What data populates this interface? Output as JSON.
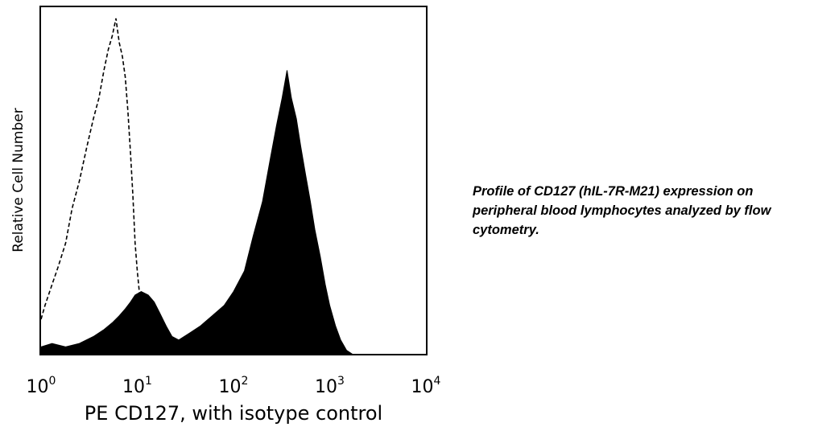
{
  "caption": "Profile of CD127 (hIL-7R-M21) expression on peripheral blood lymphocytes analyzed by flow cytometry.",
  "chart_data": {
    "type": "area",
    "xscale": "log",
    "xlim": [
      1,
      10000
    ],
    "ylim": [
      0,
      1
    ],
    "grid": false,
    "xlabel": "PE CD127, with isotype control",
    "ylabel": "Relative Cell Number",
    "x_ticks": [
      {
        "base": "10",
        "exp": "0",
        "value": 1
      },
      {
        "base": "10",
        "exp": "1",
        "value": 10
      },
      {
        "base": "10",
        "exp": "2",
        "value": 100
      },
      {
        "base": "10",
        "exp": "3",
        "value": 1000
      },
      {
        "base": "10",
        "exp": "4",
        "value": 10000
      }
    ],
    "series": [
      {
        "style": "dashed outline",
        "color": "#000000",
        "x": [
          1.0,
          1.1,
          1.3,
          1.5,
          1.8,
          2.1,
          2.5,
          3.0,
          3.5,
          4.0,
          4.5,
          5.0,
          5.5,
          6.0,
          6.5,
          7.0,
          7.5,
          8.0,
          8.5,
          9.0,
          9.5,
          10.0,
          10.5,
          11.0,
          11.5,
          12.0
        ],
        "y": [
          0.1,
          0.14,
          0.2,
          0.25,
          0.32,
          0.42,
          0.5,
          0.6,
          0.68,
          0.74,
          0.82,
          0.88,
          0.92,
          0.97,
          0.9,
          0.86,
          0.8,
          0.7,
          0.58,
          0.46,
          0.32,
          0.24,
          0.18,
          0.12,
          0.05,
          0.0
        ]
      },
      {
        "style": "filled",
        "color": "#000000",
        "x": [
          1.0,
          1.3,
          1.8,
          2.5,
          3.5,
          4.5,
          5.5,
          6.5,
          7.5,
          8.5,
          9.5,
          11.0,
          13.0,
          15.0,
          17.0,
          20.0,
          23.0,
          27.0,
          35.0,
          45.0,
          60.0,
          80.0,
          100.0,
          130.0,
          160.0,
          200.0,
          240.0,
          280.0,
          320.0,
          360.0,
          400.0,
          450.0,
          500.0,
          560.0,
          630.0,
          700.0,
          800.0,
          900.0,
          1000.0,
          1150.0,
          1300.0,
          1500.0,
          1700.0
        ],
        "y": [
          0.02,
          0.03,
          0.02,
          0.03,
          0.05,
          0.07,
          0.09,
          0.11,
          0.13,
          0.15,
          0.17,
          0.18,
          0.17,
          0.15,
          0.12,
          0.08,
          0.05,
          0.04,
          0.06,
          0.08,
          0.11,
          0.14,
          0.18,
          0.24,
          0.34,
          0.44,
          0.56,
          0.66,
          0.74,
          0.82,
          0.74,
          0.68,
          0.6,
          0.52,
          0.44,
          0.36,
          0.28,
          0.2,
          0.14,
          0.08,
          0.04,
          0.01,
          0.0
        ]
      }
    ]
  }
}
